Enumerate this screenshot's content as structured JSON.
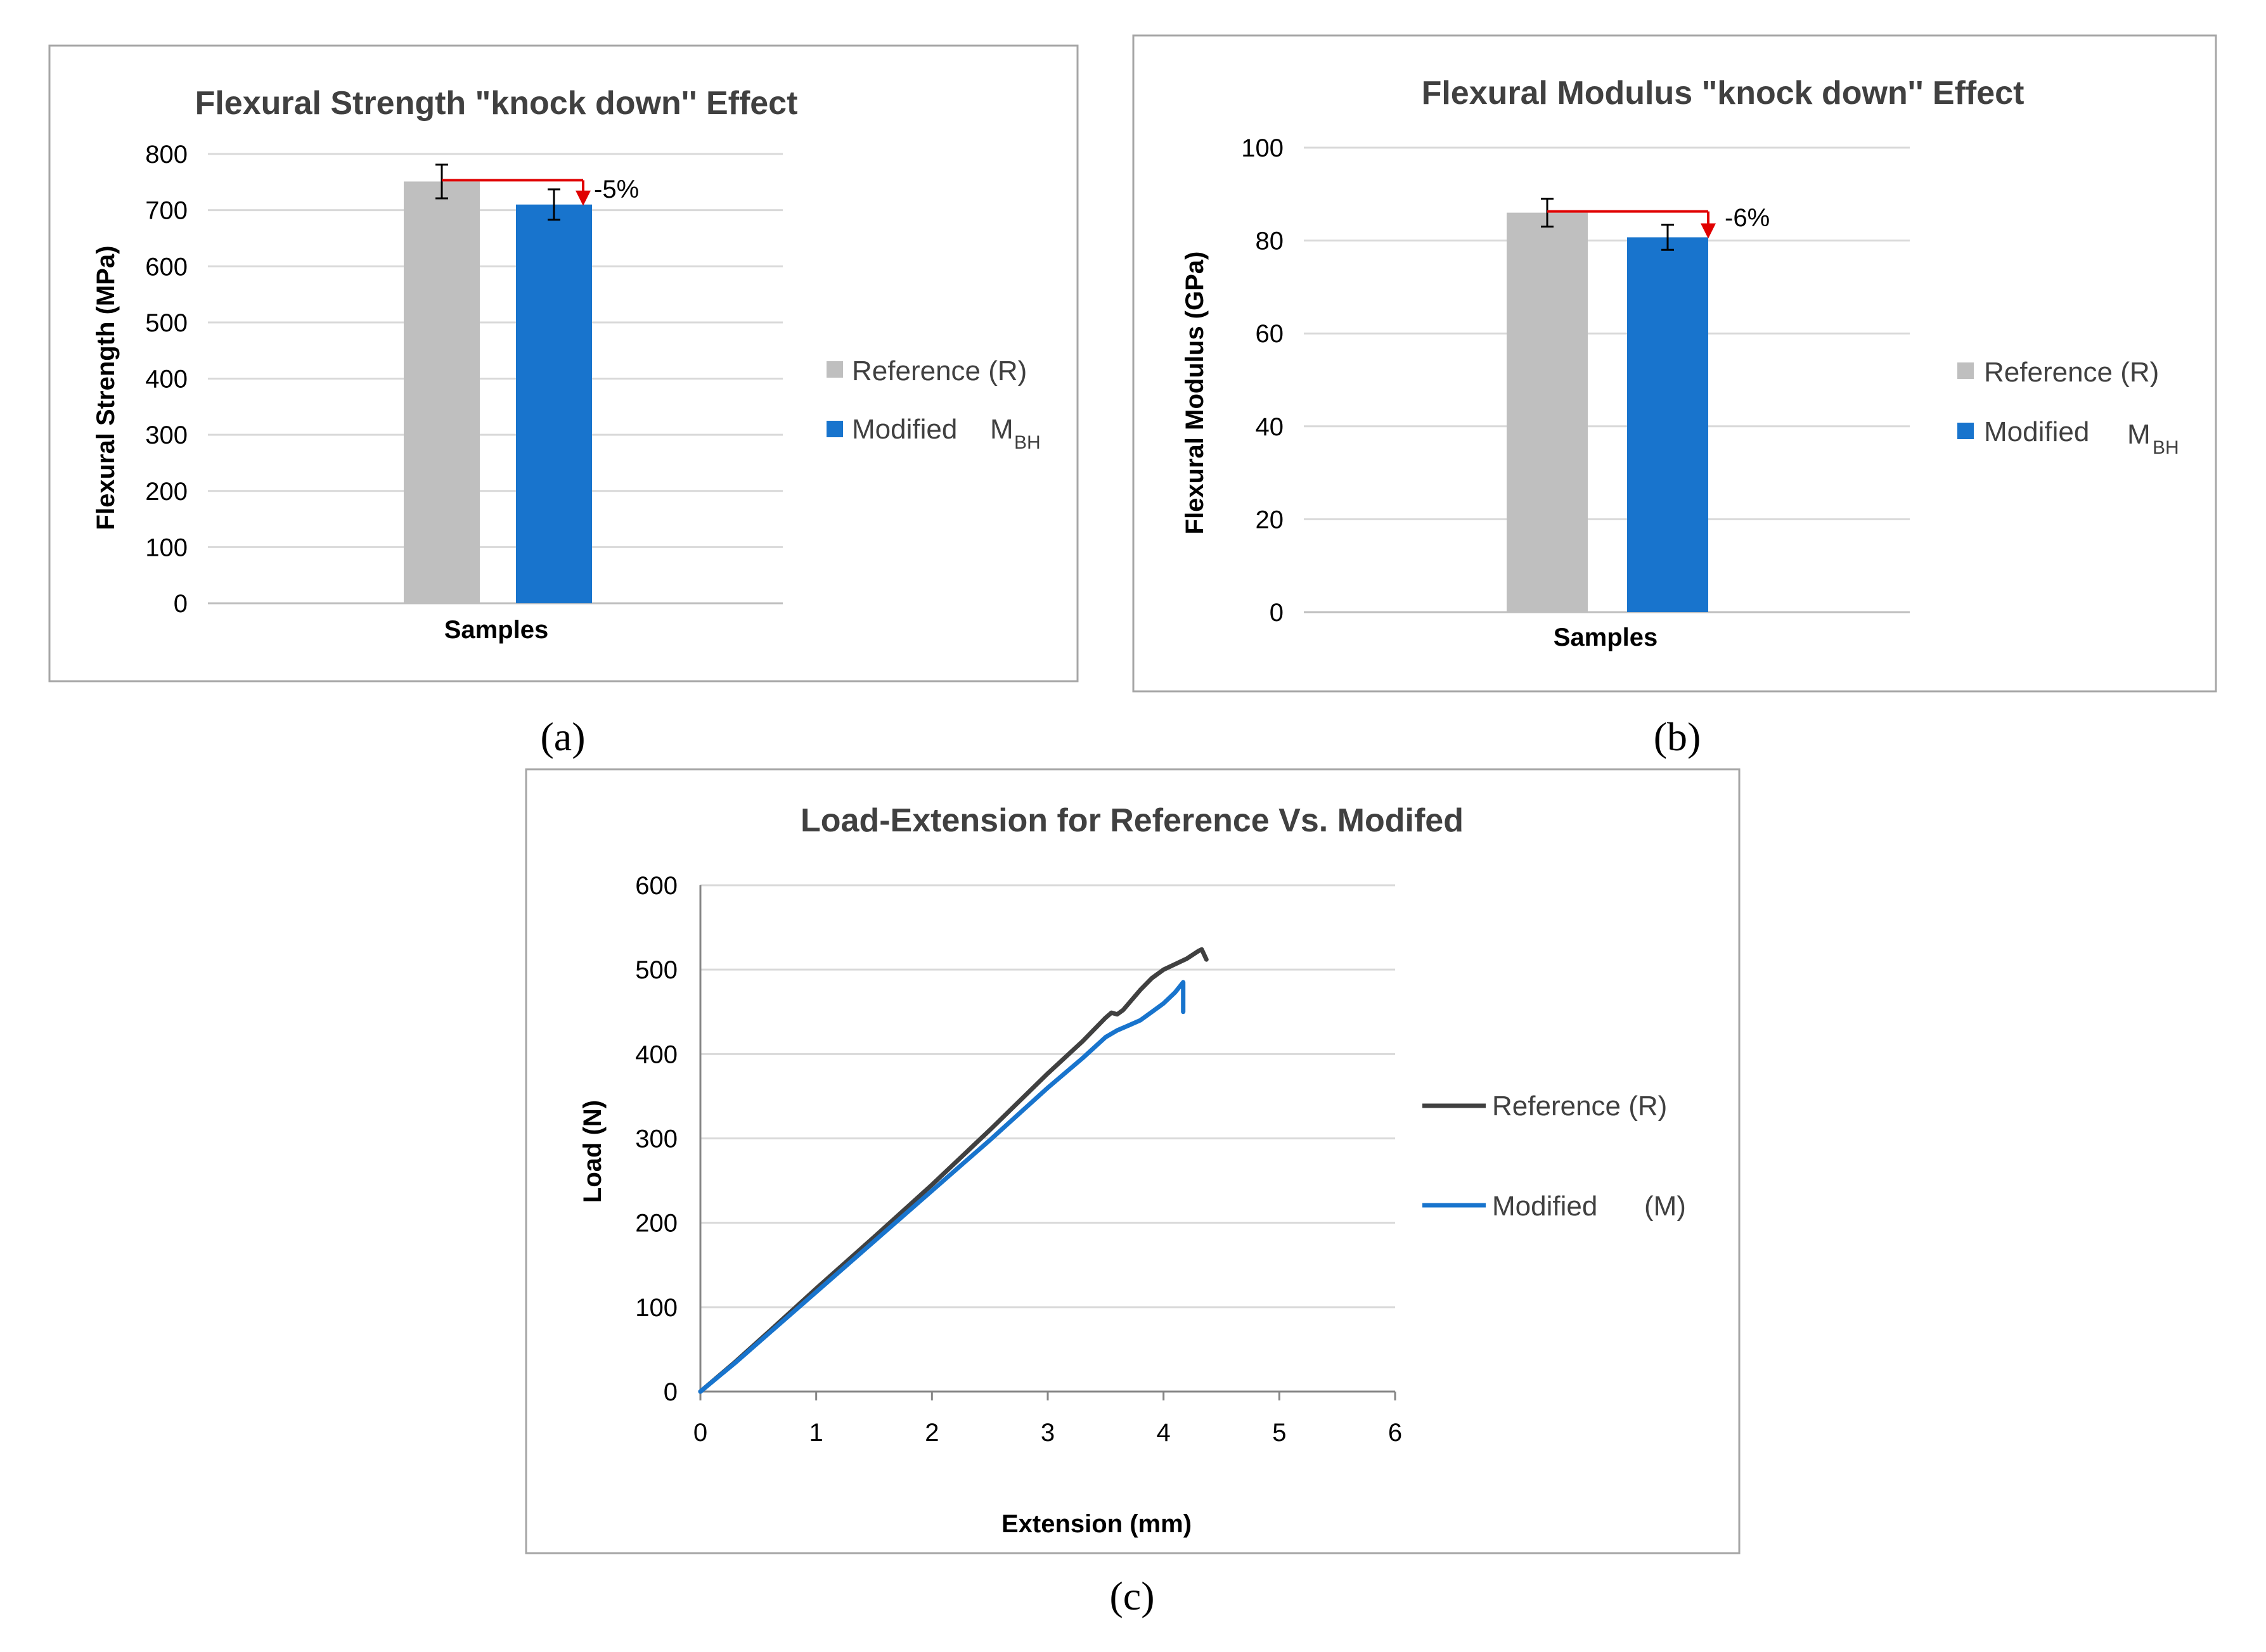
{
  "chart_data": [
    {
      "type": "bar",
      "panel_label": "(a)",
      "title": "Flexural Strength \"knock down'' Effect",
      "xlabel": "Samples",
      "ylabel": "Flexural Strength (MPa)",
      "ylim": [
        0,
        800
      ],
      "yticks": [
        "0",
        "100",
        "200",
        "300",
        "400",
        "500",
        "600",
        "700",
        "800"
      ],
      "grid": true,
      "legend_position": "right",
      "series": [
        {
          "name": "Reference (R)",
          "value": 751,
          "error": 30,
          "color": "#bfbfbf"
        },
        {
          "name": "Modified",
          "subscript_base": "M",
          "subscript": "BH",
          "value": 710,
          "error": 27,
          "color": "#1874cd"
        }
      ],
      "annotation": {
        "text": "-5%",
        "color": "#e00000"
      }
    },
    {
      "type": "bar",
      "panel_label": "(b)",
      "title": "Flexural Modulus \"knock down'' Effect",
      "xlabel": "Samples",
      "ylabel": "Flexural Modulus (GPa)",
      "ylim": [
        0,
        100
      ],
      "yticks": [
        "0",
        "20",
        "40",
        "60",
        "80",
        "100"
      ],
      "grid": true,
      "legend_position": "right",
      "series": [
        {
          "name": "Reference (R)",
          "value": 86,
          "error": 3,
          "color": "#bfbfbf"
        },
        {
          "name": "Modified",
          "subscript_base": "M",
          "subscript": "BH",
          "value": 80.7,
          "error": 2.7,
          "color": "#1874cd"
        }
      ],
      "annotation": {
        "text": "-6%",
        "color": "#e00000"
      }
    },
    {
      "type": "line",
      "panel_label": "(c)",
      "title": "Load-Extension for Reference Vs. Modifed",
      "xlabel": "Extension (mm)",
      "ylabel": "Load (N)",
      "xlim": [
        0,
        6
      ],
      "ylim": [
        0,
        600
      ],
      "xticks": [
        "0",
        "1",
        "2",
        "3",
        "4",
        "5",
        "6"
      ],
      "yticks": [
        "0",
        "100",
        "200",
        "300",
        "400",
        "500",
        "600"
      ],
      "grid": true,
      "legend_position": "right",
      "series": [
        {
          "name": "Reference (R)",
          "color": "#404040",
          "points": [
            [
              0,
              0
            ],
            [
              0.3,
              35
            ],
            [
              0.6,
              72
            ],
            [
              1.0,
              122
            ],
            [
              1.5,
              183
            ],
            [
              2.0,
              245
            ],
            [
              2.5,
              310
            ],
            [
              3.0,
              377
            ],
            [
              3.3,
              415
            ],
            [
              3.5,
              443
            ],
            [
              3.55,
              449
            ],
            [
              3.6,
              447
            ],
            [
              3.65,
              452
            ],
            [
              3.8,
              476
            ],
            [
              3.9,
              490
            ],
            [
              4.0,
              500
            ],
            [
              4.2,
              513
            ],
            [
              4.3,
              522
            ],
            [
              4.33,
              524
            ],
            [
              4.37,
              512
            ]
          ]
        },
        {
          "name": "Modified",
          "suffix": "(M)",
          "color": "#1874cd",
          "points": [
            [
              0,
              0
            ],
            [
              0.3,
              34
            ],
            [
              0.6,
              70
            ],
            [
              1.0,
              118
            ],
            [
              1.5,
              178
            ],
            [
              2.0,
              238
            ],
            [
              2.5,
              298
            ],
            [
              3.0,
              360
            ],
            [
              3.3,
              395
            ],
            [
              3.5,
              420
            ],
            [
              3.6,
              428
            ],
            [
              3.7,
              434
            ],
            [
              3.8,
              440
            ],
            [
              3.9,
              450
            ],
            [
              4.0,
              460
            ],
            [
              4.1,
              473
            ],
            [
              4.17,
              485
            ],
            [
              4.17,
              450
            ]
          ]
        }
      ]
    }
  ]
}
